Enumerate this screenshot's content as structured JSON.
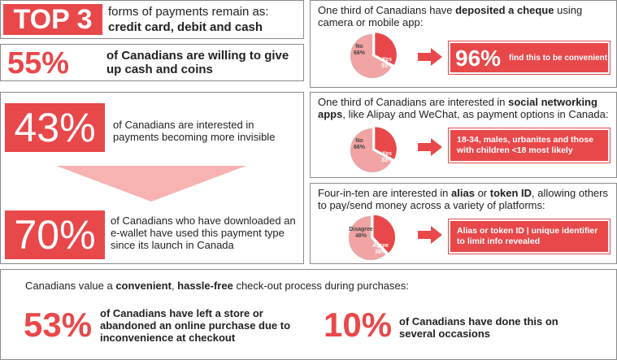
{
  "top3": {
    "badge": "TOP 3",
    "line1": "forms of payments remain as:",
    "items": "credit card, debit and cash"
  },
  "cash55": {
    "pct": "55%",
    "text": "of Canadians are willing to give up cash and coins"
  },
  "cheque": {
    "text_pre": "One third of Canadians have ",
    "text_bold": "deposited a cheque",
    "text_post": " using camera or mobile app:",
    "pie": {
      "no_label": "No",
      "no_pct": "66%",
      "yes_label": "Yes",
      "yes_pct": "33%",
      "yes_value": 33
    },
    "result_pct": "96%",
    "result_text": "find this to be convenient"
  },
  "invisible43": {
    "pct": "43%",
    "text": "of Canadians are interested in payments becoming more invisible"
  },
  "wallet70": {
    "pct": "70%",
    "text": "of Canadians who have downloaded an e-wallet have used this payment type since its launch in Canada"
  },
  "social": {
    "text_pre": "One third of Canadians are interested in ",
    "text_bold": "social networking apps",
    "text_post": ", like Alipay and WeChat, as payment options in Canada:",
    "pie": {
      "no_label": "No",
      "no_pct": "66%",
      "yes_label": "Yes",
      "yes_pct": "33%",
      "yes_value": 33
    },
    "result_text": "18-34, males, urbanites and those with children <18 most likely"
  },
  "alias": {
    "text_pre": "Four-in-ten are interested in ",
    "text_bold1": "alias",
    "text_mid": " or ",
    "text_bold2": "token ID",
    "text_post": ", allowing others to pay/send money across a variety of platforms:",
    "pie": {
      "disagree_label": "Disagree",
      "disagree_pct": "48%",
      "agree_label": "Agree",
      "agree_pct": "38%",
      "agree_value": 38
    },
    "result_text": "Alias or token ID | unique identifier to limit info revealed"
  },
  "checkout": {
    "intro_pre": "Canadians value a ",
    "intro_bold1": "convenient",
    "intro_mid": ", ",
    "intro_bold2": "hassle-free",
    "intro_post": " check-out process during purchases:",
    "pct1": "53%",
    "text1": "of Canadians have left a store or abandoned an online purchase due to inconvenience at checkout",
    "pct2": "10%",
    "text2": "of Canadians have done this on several occasions"
  },
  "colors": {
    "accent": "#e8484a",
    "pie_light": "#f2a3a4",
    "arrow": "#f7b2b2"
  }
}
